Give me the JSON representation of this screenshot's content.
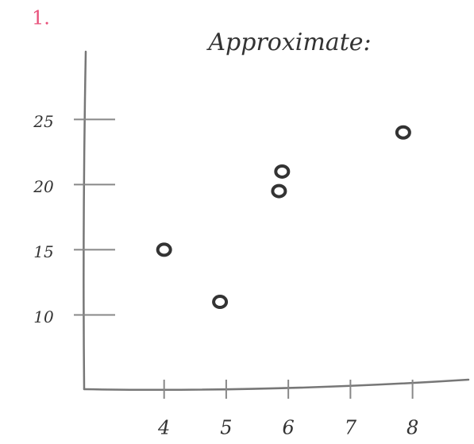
{
  "problem_number": "1.",
  "chart_data": {
    "type": "scatter",
    "title": "Approximate:",
    "x": [
      4,
      4.9,
      5.9,
      5.85,
      7.85
    ],
    "values": [
      15,
      11,
      21,
      19.5,
      24
    ],
    "color": "#333333",
    "xlim": [
      2.7,
      8.9
    ],
    "ylim": [
      4.3,
      30.2
    ],
    "xticks": [
      4,
      5,
      6,
      7,
      8
    ],
    "yticks": [
      10,
      15,
      20,
      25
    ],
    "grid": false
  }
}
